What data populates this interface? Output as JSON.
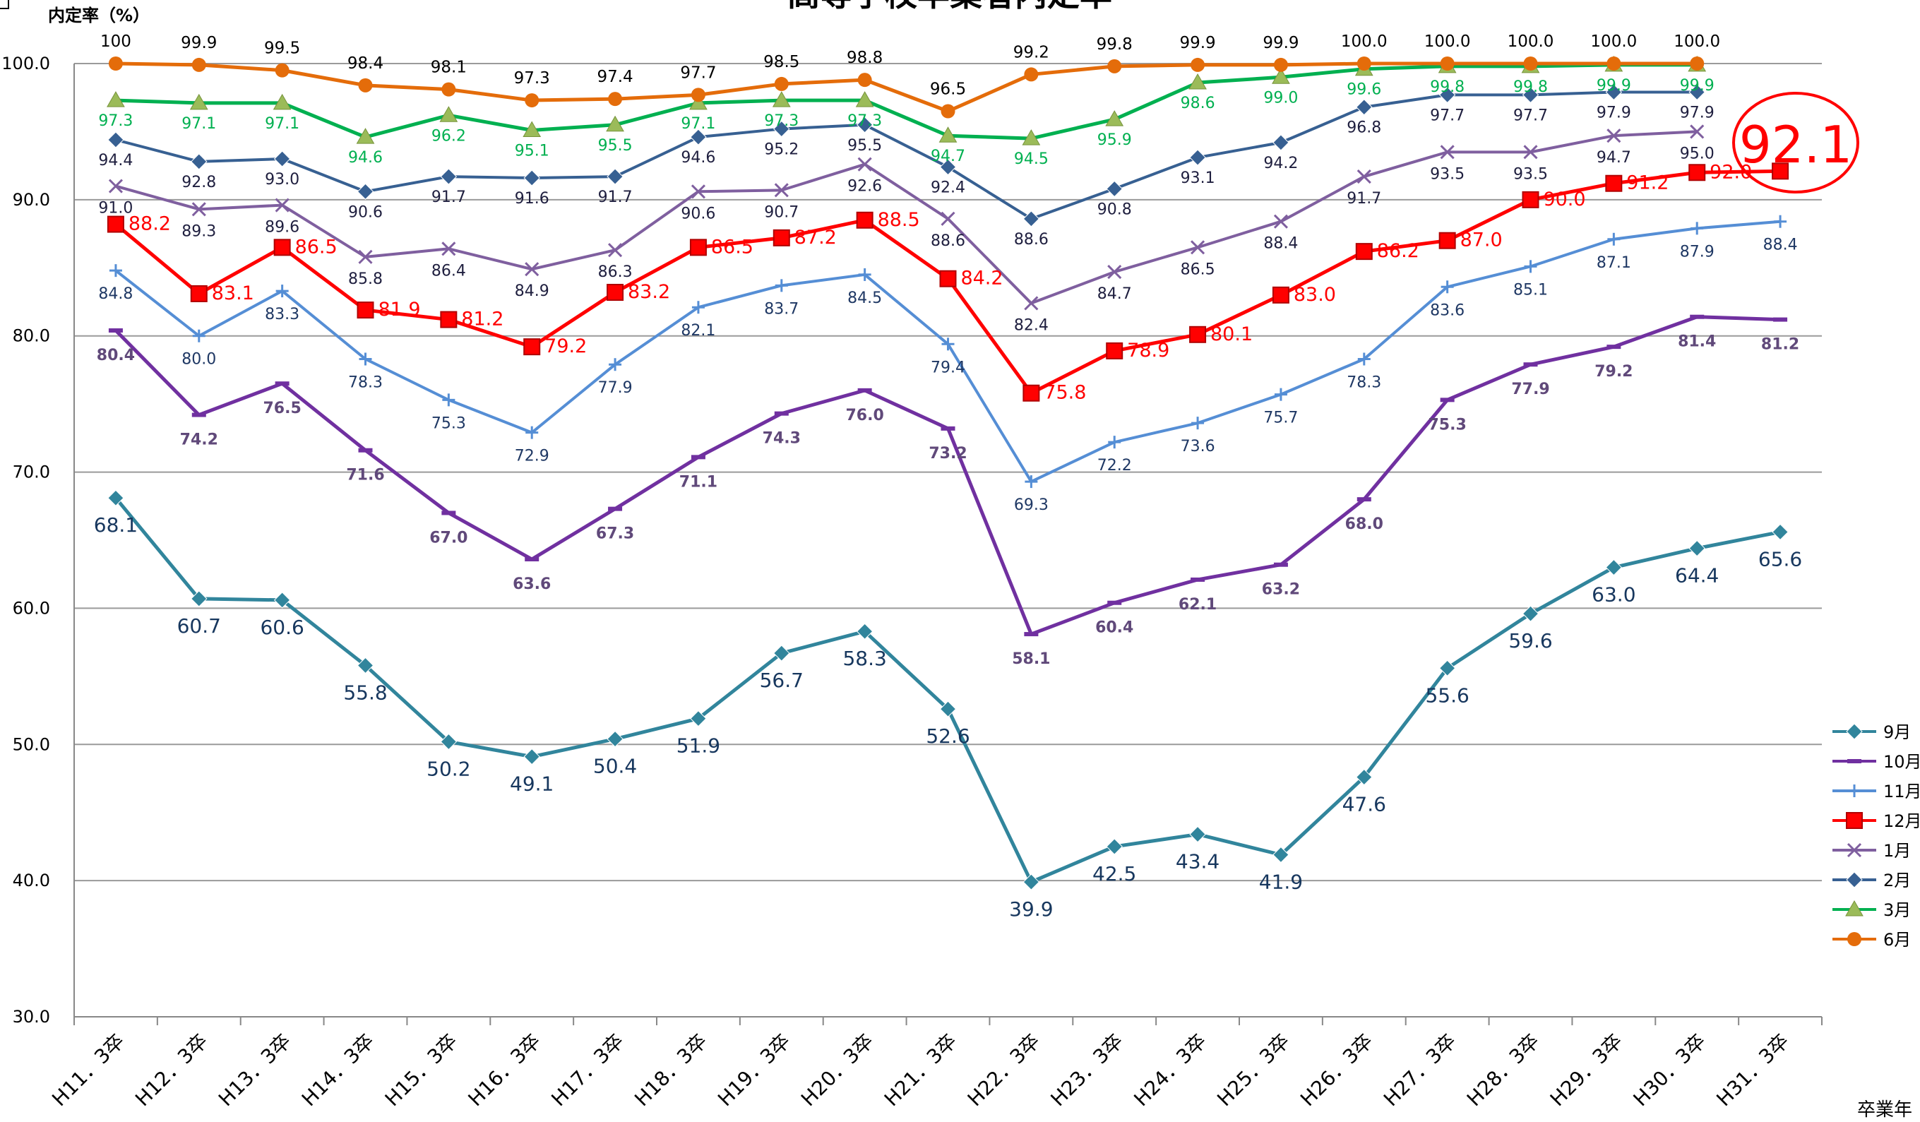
{
  "chart_data": {
    "type": "line",
    "title": "高等学校卒業者内定率",
    "ylabel": "内定率（%）",
    "xlabel": "卒業年",
    "ylim": [
      30,
      100
    ],
    "yticks": [
      "30.0",
      "40.0",
      "50.0",
      "60.0",
      "70.0",
      "80.0",
      "90.0",
      "100.0"
    ],
    "grid": true,
    "legend_position": "right",
    "categories": [
      "H11．3卒",
      "H12．3卒",
      "H13．3卒",
      "H14．3卒",
      "H15．3卒",
      "H16．3卒",
      "H17．3卒",
      "H18．3卒",
      "H19．3卒",
      "H20．3卒",
      "H21．3卒",
      "H22．3卒",
      "H23．3卒",
      "H24．3卒",
      "H25．3卒",
      "H26．3卒",
      "H27．3卒",
      "H28．3卒",
      "H29．3卒",
      "H30．3卒",
      "H31．3卒"
    ],
    "series": [
      {
        "name": "9月",
        "color": "#31859c",
        "marker": "diamond",
        "values": [
          68.1,
          60.7,
          60.6,
          55.8,
          50.2,
          49.1,
          50.4,
          51.9,
          56.7,
          58.3,
          52.6,
          39.9,
          42.5,
          43.4,
          41.9,
          47.6,
          55.6,
          59.6,
          63.0,
          64.4,
          65.6
        ],
        "labels": [
          "68.1",
          "60.7",
          "60.6",
          "55.8",
          "50.2",
          "49.1",
          "50.4",
          "51.9",
          "56.7",
          "58.3",
          "52.6",
          "39.9",
          "42.5",
          "43.4",
          "41.9",
          "47.6",
          "55.6",
          "59.6",
          "63.0",
          "64.4",
          "65.6"
        ]
      },
      {
        "name": "10月",
        "color": "#7030a0",
        "marker": "dash",
        "values": [
          80.4,
          74.2,
          76.5,
          71.6,
          67.0,
          63.6,
          67.3,
          71.1,
          74.3,
          76.0,
          73.2,
          58.1,
          60.4,
          62.1,
          63.2,
          68.0,
          75.3,
          77.9,
          79.2,
          81.4,
          81.2
        ],
        "labels": [
          "80.4",
          "74.2",
          "76.5",
          "71.6",
          "67.0",
          "63.6",
          "67.3",
          "71.1",
          "74.3",
          "76.0",
          "73.2",
          "58.1",
          "60.4",
          "62.1",
          "63.2",
          "68.0",
          "75.3",
          "77.9",
          "79.2",
          "81.4",
          "81.2"
        ]
      },
      {
        "name": "11月",
        "color": "#558ed5",
        "marker": "plus",
        "values": [
          84.8,
          80.0,
          83.3,
          78.3,
          75.3,
          72.9,
          77.9,
          82.1,
          83.7,
          84.5,
          79.4,
          69.3,
          72.2,
          73.6,
          75.7,
          78.3,
          83.6,
          85.1,
          87.1,
          87.9,
          88.4
        ],
        "labels": [
          "84.8",
          "80.0",
          "83.3",
          "78.3",
          "75.3",
          "72.9",
          "77.9",
          "82.1",
          "83.7",
          "84.5",
          "79.4",
          "69.3",
          "72.2",
          "73.6",
          "75.7",
          "78.3",
          "83.6",
          "85.1",
          "87.1",
          "87.9",
          "88.4"
        ]
      },
      {
        "name": "12月",
        "color": "#ff0000",
        "marker": "square",
        "values": [
          88.2,
          83.1,
          86.5,
          81.9,
          81.2,
          79.2,
          83.2,
          86.5,
          87.2,
          88.5,
          84.2,
          75.8,
          78.9,
          80.1,
          83.0,
          86.2,
          87.0,
          90.0,
          91.2,
          92.0,
          92.1
        ],
        "labels": [
          "88.2",
          "83.1",
          "86.5",
          "81.9",
          "81.2",
          "79.2",
          "83.2",
          "86.5",
          "87.2",
          "88.5",
          "84.2",
          "75.8",
          "78.9",
          "80.1",
          "83.0",
          "86.2",
          "87.0",
          "90.0",
          "91.2",
          "92.0",
          "92.1"
        ]
      },
      {
        "name": "1月",
        "color": "#7f5f9f",
        "marker": "x",
        "values": [
          91.0,
          89.3,
          89.6,
          85.8,
          86.4,
          84.9,
          86.3,
          90.6,
          90.7,
          92.6,
          88.6,
          82.4,
          84.7,
          86.5,
          88.4,
          91.7,
          93.5,
          93.5,
          94.7,
          95.0,
          null
        ],
        "labels": [
          "91.0",
          "89.3",
          "89.6",
          "85.8",
          "86.4",
          "84.9",
          "86.3",
          "90.6",
          "90.7",
          "92.6",
          "88.6",
          "82.4",
          "84.7",
          "86.5",
          "88.4",
          "91.7",
          "93.5",
          "93.5",
          "94.7",
          "95.0",
          ""
        ]
      },
      {
        "name": "2月",
        "color": "#376092",
        "marker": "diamond",
        "values": [
          94.4,
          92.8,
          93.0,
          90.6,
          91.7,
          91.6,
          91.7,
          94.6,
          95.2,
          95.5,
          92.4,
          88.6,
          90.8,
          93.1,
          94.2,
          96.8,
          97.7,
          97.7,
          97.9,
          97.9,
          null
        ],
        "labels": [
          "94.4",
          "92.8",
          "93.0",
          "90.6",
          "91.7",
          "91.6",
          "91.7",
          "94.6",
          "95.2",
          "95.5",
          "92.4",
          "88.6",
          "90.8",
          "93.1",
          "94.2",
          "96.8",
          "97.7",
          "97.7",
          "97.9",
          "97.9",
          ""
        ]
      },
      {
        "name": "3月",
        "color": "#00b050",
        "marker": "triangle",
        "values": [
          97.3,
          97.1,
          97.1,
          94.6,
          96.2,
          95.1,
          95.5,
          97.1,
          97.3,
          97.3,
          94.7,
          94.5,
          95.9,
          98.6,
          99.0,
          99.6,
          99.8,
          99.8,
          99.9,
          99.9,
          null
        ],
        "labels": [
          "97.3",
          "97.1",
          "97.1",
          "94.6",
          "96.2",
          "95.1",
          "95.5",
          "97.1",
          "97.3",
          "97.3",
          "94.7",
          "94.5",
          "95.9",
          "98.6",
          "99.0",
          "99.6",
          "99.8",
          "99.8",
          "99.9",
          "99.9",
          ""
        ]
      },
      {
        "name": "6月",
        "color": "#e46c0a",
        "marker": "circle",
        "values": [
          100.0,
          99.9,
          99.5,
          98.4,
          98.1,
          97.3,
          97.4,
          97.7,
          98.5,
          98.8,
          96.5,
          99.2,
          99.8,
          99.9,
          99.9,
          100.0,
          100.0,
          100.0,
          100.0,
          100.0,
          null
        ],
        "labels": [
          "100",
          "99.9",
          "99.5",
          "98.4",
          "98.1",
          "97.3",
          "97.4",
          "97.7",
          "98.5",
          "98.8",
          "96.5",
          "99.2",
          "99.8",
          "99.9",
          "99.9",
          "100.0",
          "100.0",
          "100.0",
          "100.0",
          "100.0",
          ""
        ]
      }
    ],
    "highlight": {
      "value": "92.1",
      "color": "#ff0000"
    }
  }
}
